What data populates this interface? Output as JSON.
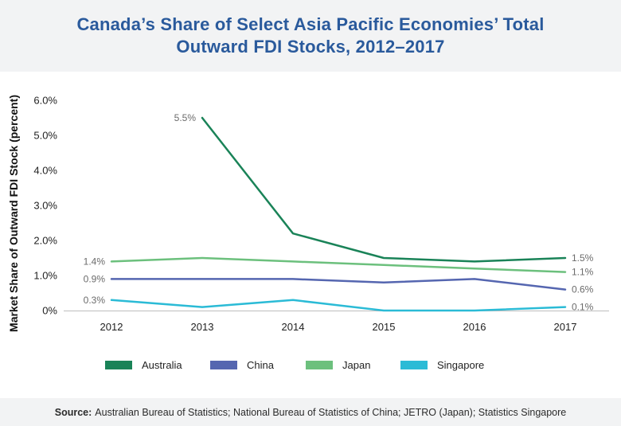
{
  "header": {
    "title": "Canada’s Share of Select Asia Pacific Economies’ Total Outward FDI Stocks, 2012–2017"
  },
  "footer": {
    "source_label": "Source:",
    "source_text": "Australian Bureau of Statistics; National Bureau of Statistics of China; JETRO (Japan); Statistics Singapore"
  },
  "chart_data": {
    "type": "line",
    "title": "Canada’s Share of Select Asia Pacific Economies’ Total Outward FDI Stocks, 2012–2017",
    "xlabel": "",
    "ylabel": "Market Share of Outward FDI Stock (percent)",
    "x": [
      "2012",
      "2013",
      "2014",
      "2015",
      "2016",
      "2017"
    ],
    "ylim": [
      0,
      6
    ],
    "yticks": [
      0,
      1,
      2,
      3,
      4,
      5,
      6
    ],
    "ytick_labels": [
      "0%",
      "1.0%",
      "2.0%",
      "3.0%",
      "4.0%",
      "5.0%",
      "6.0%"
    ],
    "grid": false,
    "legend_position": "bottom",
    "series": [
      {
        "name": "Australia",
        "color": "#1a8358",
        "values": [
          null,
          5.5,
          2.2,
          1.5,
          1.4,
          1.5
        ],
        "labels": [
          {
            "index": 1,
            "text": "5.5%",
            "side": "left"
          },
          {
            "index": 5,
            "text": "1.5%",
            "side": "right"
          }
        ]
      },
      {
        "name": "China",
        "color": "#5566b0",
        "values": [
          0.9,
          0.9,
          0.9,
          0.8,
          0.9,
          0.6
        ],
        "labels": [
          {
            "index": 0,
            "text": "0.9%",
            "side": "left"
          },
          {
            "index": 5,
            "text": "0.6%",
            "side": "right"
          }
        ]
      },
      {
        "name": "Japan",
        "color": "#6cc07d",
        "values": [
          1.4,
          1.5,
          1.4,
          1.3,
          1.2,
          1.1
        ],
        "labels": [
          {
            "index": 0,
            "text": "1.4%",
            "side": "left"
          },
          {
            "index": 5,
            "text": "1.1%",
            "side": "right"
          }
        ]
      },
      {
        "name": "Singapore",
        "color": "#2bbbd6",
        "values": [
          0.3,
          0.1,
          0.3,
          0.0,
          0.0,
          0.1
        ],
        "labels": [
          {
            "index": 0,
            "text": "0.3%",
            "side": "left"
          },
          {
            "index": 5,
            "text": "0.1%",
            "side": "right"
          }
        ]
      }
    ]
  }
}
